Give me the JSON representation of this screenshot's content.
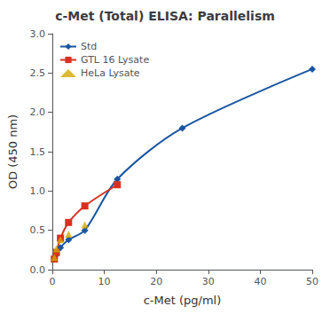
{
  "chart_data": {
    "type": "scatter",
    "title": "c-Met (Total) ELISA: Parallelism",
    "xlabel": "c-Met (pg/ml)",
    "ylabel": "OD (450 nm)",
    "xlim": [
      0,
      50
    ],
    "ylim": [
      0.0,
      3.0
    ],
    "xticks": [
      0,
      10,
      20,
      30,
      40,
      50
    ],
    "yticks": [
      {
        "value": 0.0,
        "label": "0.0"
      },
      {
        "value": 0.5,
        "label": "0.5"
      },
      {
        "value": 1.0,
        "label": "1.0"
      },
      {
        "value": 1.5,
        "label": "1.5"
      },
      {
        "value": 2.0,
        "label": "2.0"
      },
      {
        "value": 2.5,
        "label": "2.5"
      },
      {
        "value": 3.0,
        "label": "3.0"
      }
    ],
    "grid": false,
    "legend": "upper left",
    "series": [
      {
        "name": "Std",
        "type": "line",
        "marker": "diamond",
        "line_style": "solid",
        "color": "#1a56a0",
        "x": [
          0.39,
          0.78,
          1.56,
          3.12,
          6.25,
          12.5,
          25.0,
          50.0
        ],
        "values": [
          0.14,
          0.19,
          0.28,
          0.38,
          0.5,
          1.15,
          1.8,
          2.55
        ]
      },
      {
        "name": "GTL 16 Lysate",
        "type": "line",
        "marker": "square",
        "line_style": "solid",
        "color": "#d93020",
        "x": [
          0.39,
          0.78,
          1.56,
          3.12,
          6.25,
          12.5
        ],
        "values": [
          0.135,
          0.22,
          0.4,
          0.6,
          0.81,
          1.08
        ]
      },
      {
        "name": "HeLa Lysate",
        "type": "scatter",
        "marker": "triangle",
        "color": "#d4a800",
        "x": [
          0.39,
          0.78,
          1.56,
          3.12,
          6.25
        ],
        "values": [
          0.155,
          0.265,
          0.38,
          0.45,
          0.57
        ]
      }
    ]
  }
}
